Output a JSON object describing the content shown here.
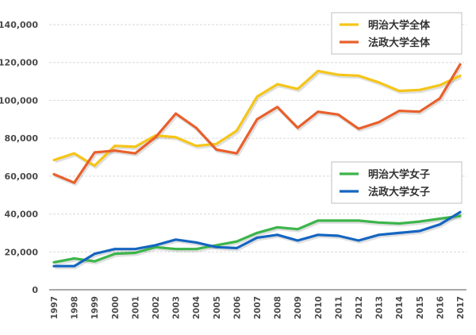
{
  "chart_data": {
    "type": "line",
    "title": "",
    "xlabel": "",
    "ylabel": "",
    "x": [
      "1997",
      "1998",
      "1999",
      "2000",
      "2001",
      "2002",
      "2003",
      "2004",
      "2005",
      "2006",
      "2007",
      "2008",
      "2009",
      "2010",
      "2011",
      "2012",
      "2013",
      "2014",
      "2015",
      "2016",
      "2017"
    ],
    "ylim": [
      0,
      140000
    ],
    "yticks": [
      0,
      20000,
      40000,
      60000,
      80000,
      100000,
      120000,
      140000
    ],
    "ytick_labels": [
      "0",
      "20,000",
      "40,000",
      "60,000",
      "80,000",
      "100,000",
      "120,000",
      "140,000"
    ],
    "grid": true,
    "series": [
      {
        "name": "明治大学全体",
        "color": "#f5c518",
        "values": [
          68500,
          72000,
          65500,
          76000,
          75500,
          81500,
          80500,
          76000,
          77000,
          84000,
          102000,
          108500,
          106000,
          115500,
          113500,
          113000,
          109500,
          105000,
          105500,
          108000,
          113000
        ]
      },
      {
        "name": "法政大学全体",
        "color": "#e8602c",
        "values": [
          61000,
          56500,
          72500,
          73500,
          72000,
          80500,
          93000,
          85500,
          74000,
          72000,
          90000,
          96500,
          85500,
          94000,
          92500,
          85000,
          88500,
          94500,
          94000,
          101000,
          119000
        ]
      },
      {
        "name": "明治大学女子",
        "color": "#3cb54a",
        "values": [
          14500,
          16500,
          15000,
          19000,
          19500,
          22500,
          21500,
          21500,
          23500,
          25500,
          30000,
          33000,
          32000,
          36500,
          36500,
          36500,
          35500,
          35000,
          36000,
          37500,
          39000
        ]
      },
      {
        "name": "法政大学女子",
        "color": "#1565c0",
        "values": [
          12500,
          12500,
          19000,
          21500,
          21500,
          23500,
          26500,
          25000,
          22500,
          22000,
          27500,
          29000,
          26000,
          29000,
          28500,
          26000,
          29000,
          30000,
          31000,
          34500,
          41000
        ]
      }
    ],
    "legends": [
      {
        "placement": "top-right",
        "entries": [
          "明治大学全体",
          "法政大学全体"
        ]
      },
      {
        "placement": "middle-right",
        "entries": [
          "明治大学女子",
          "法政大学女子"
        ]
      }
    ]
  }
}
